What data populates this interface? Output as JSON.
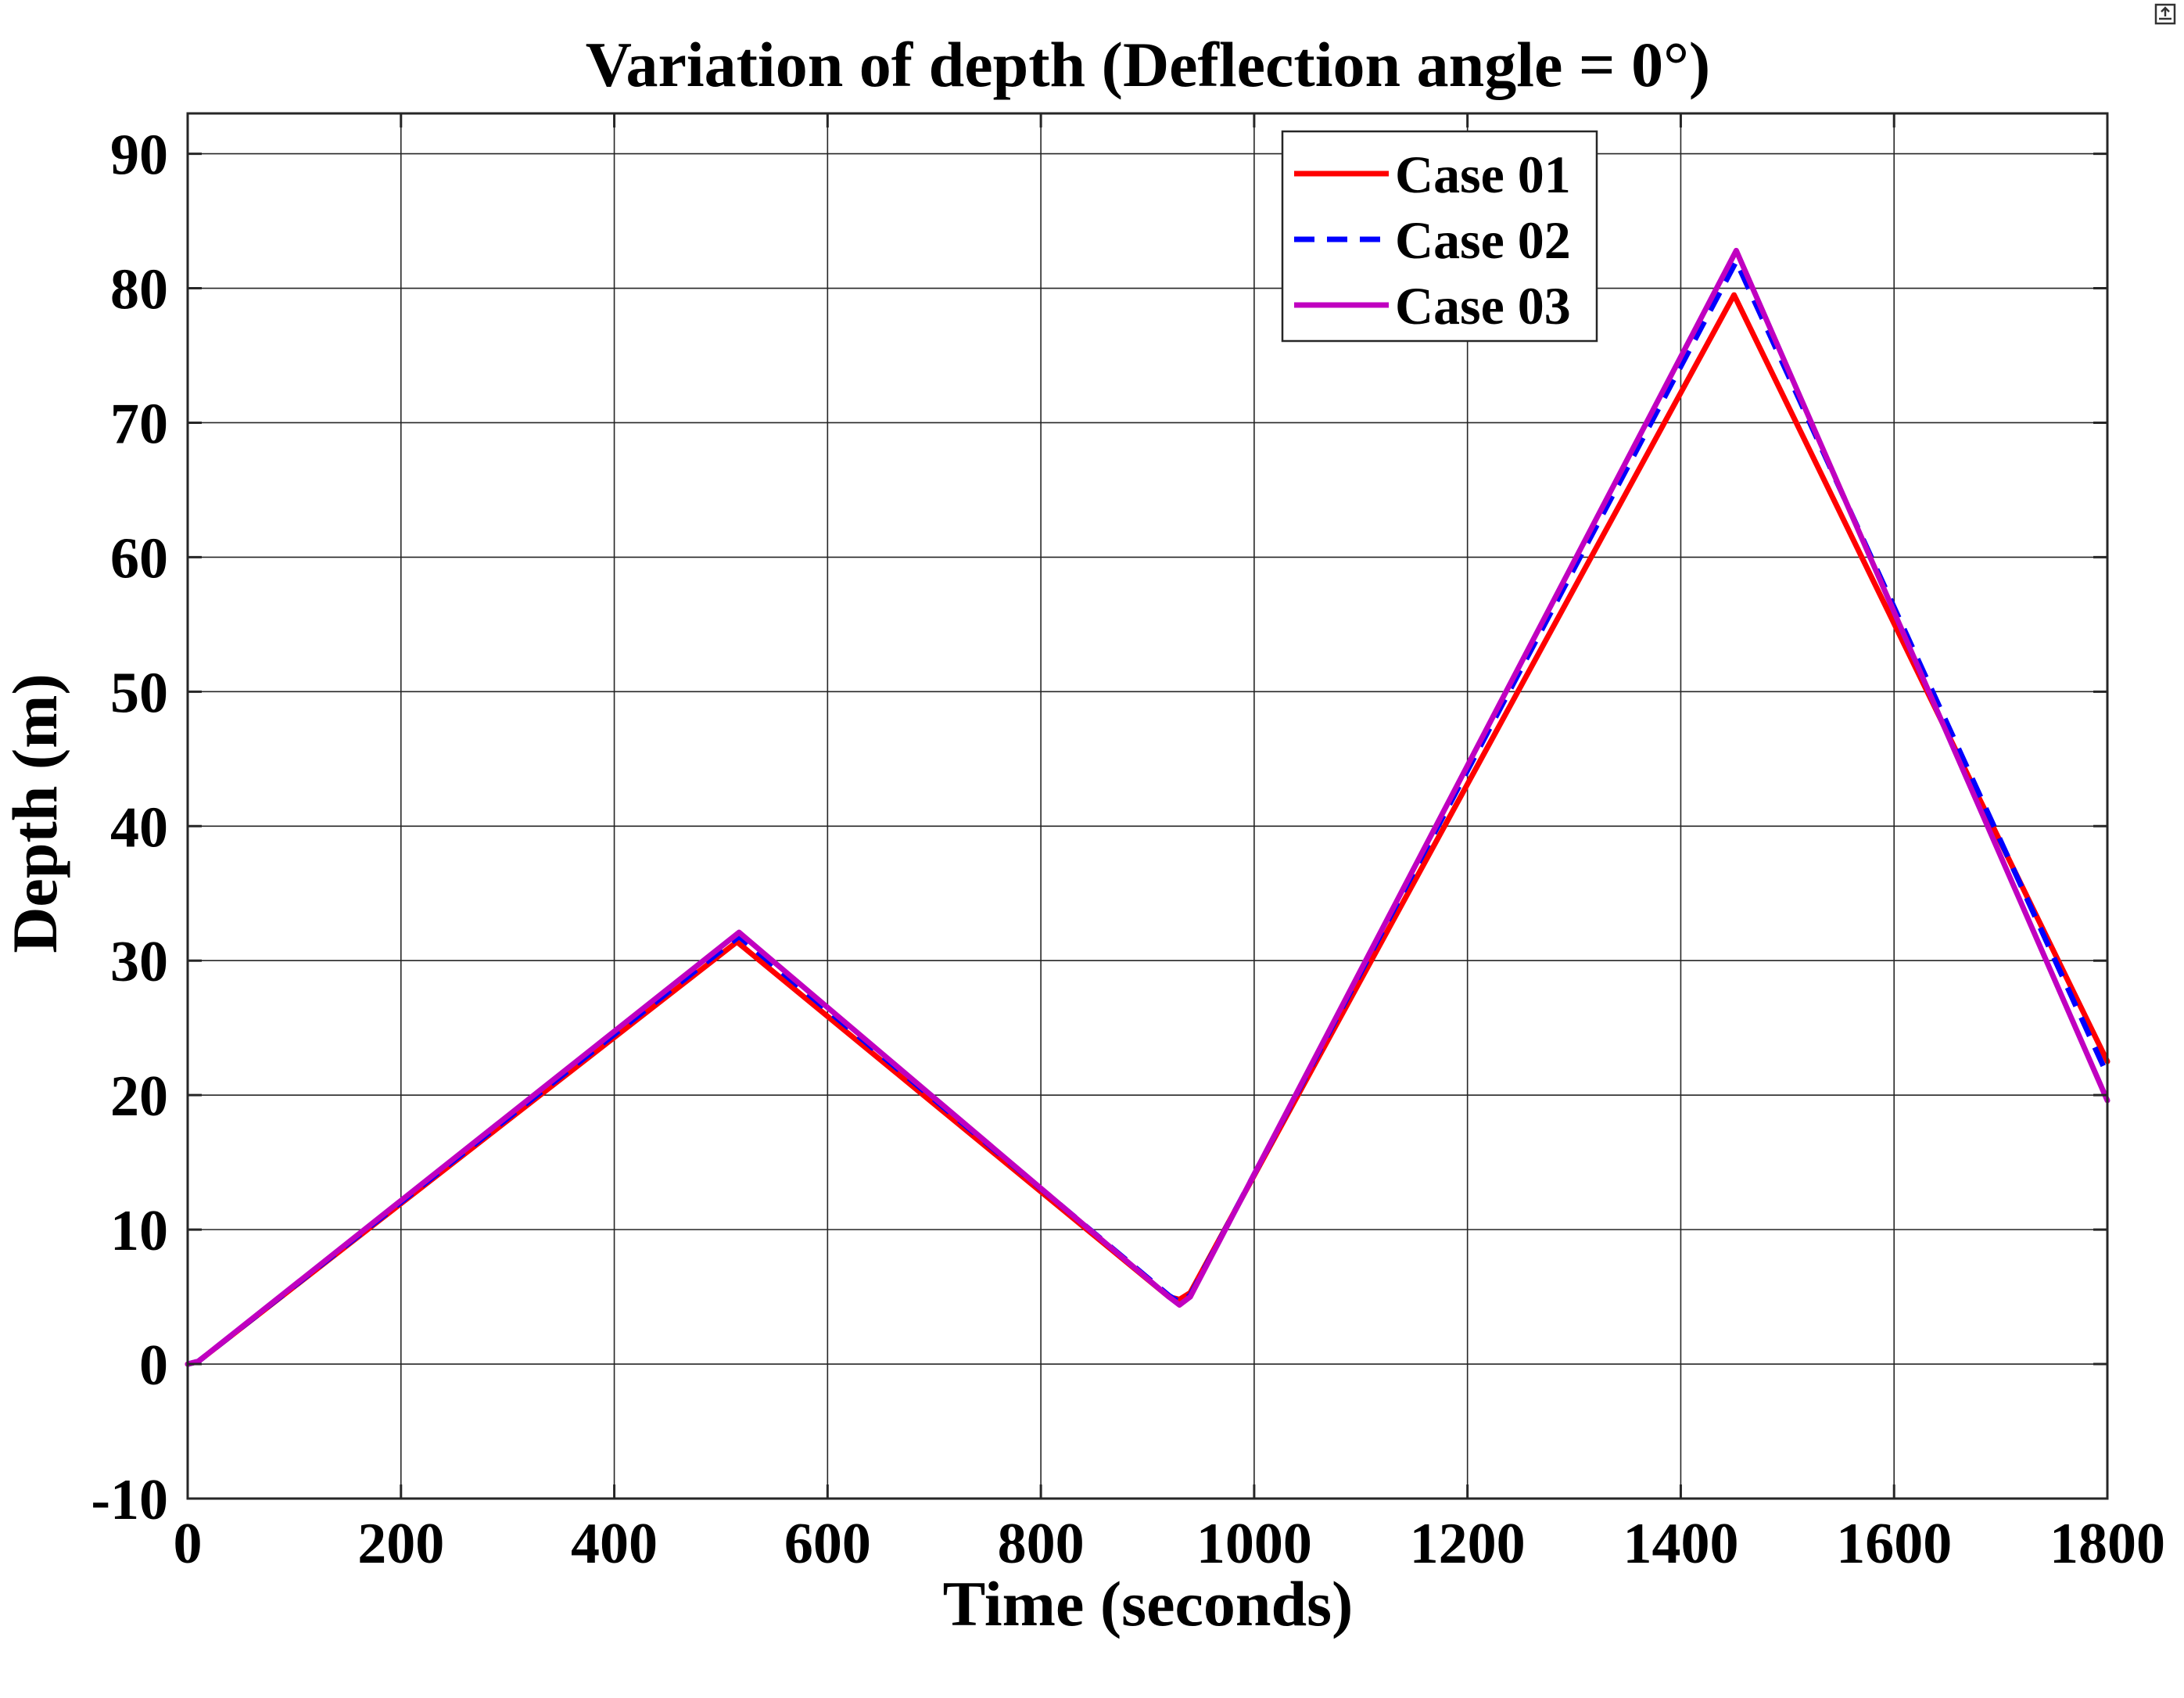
{
  "chart_data": {
    "type": "line",
    "title": "Variation of depth (Deflection angle = 0°)",
    "xlabel": "Time (seconds)",
    "ylabel": "Depth (m)",
    "xlim": [
      0,
      1800
    ],
    "ylim": [
      -10,
      93
    ],
    "xticks": [
      0,
      200,
      400,
      600,
      800,
      1000,
      1200,
      1400,
      1600,
      1800
    ],
    "yticks": [
      -10,
      0,
      10,
      20,
      30,
      40,
      50,
      60,
      70,
      80,
      90
    ],
    "grid": true,
    "legend_position": "top-right",
    "series": [
      {
        "name": "Case 01",
        "color": "#ff0000",
        "style": "solid",
        "x": [
          0,
          10,
          515,
          920,
          930,
          940,
          1450,
          1800
        ],
        "y": [
          0,
          0.2,
          31.4,
          5.0,
          4.8,
          5.3,
          79.5,
          22.5
        ]
      },
      {
        "name": "Case 02",
        "color": "#0000ff",
        "style": "dashed",
        "x": [
          0,
          10,
          517,
          920,
          930,
          940,
          1452,
          1800
        ],
        "y": [
          0,
          0.2,
          31.8,
          5.1,
          4.6,
          5.1,
          82.0,
          21.5
        ]
      },
      {
        "name": "Case 03",
        "color": "#c000c0",
        "style": "solid",
        "x": [
          0,
          10,
          517,
          920,
          930,
          940,
          1452,
          1800
        ],
        "y": [
          0,
          0.2,
          32.1,
          5.0,
          4.4,
          5.0,
          82.8,
          19.6
        ]
      }
    ]
  }
}
